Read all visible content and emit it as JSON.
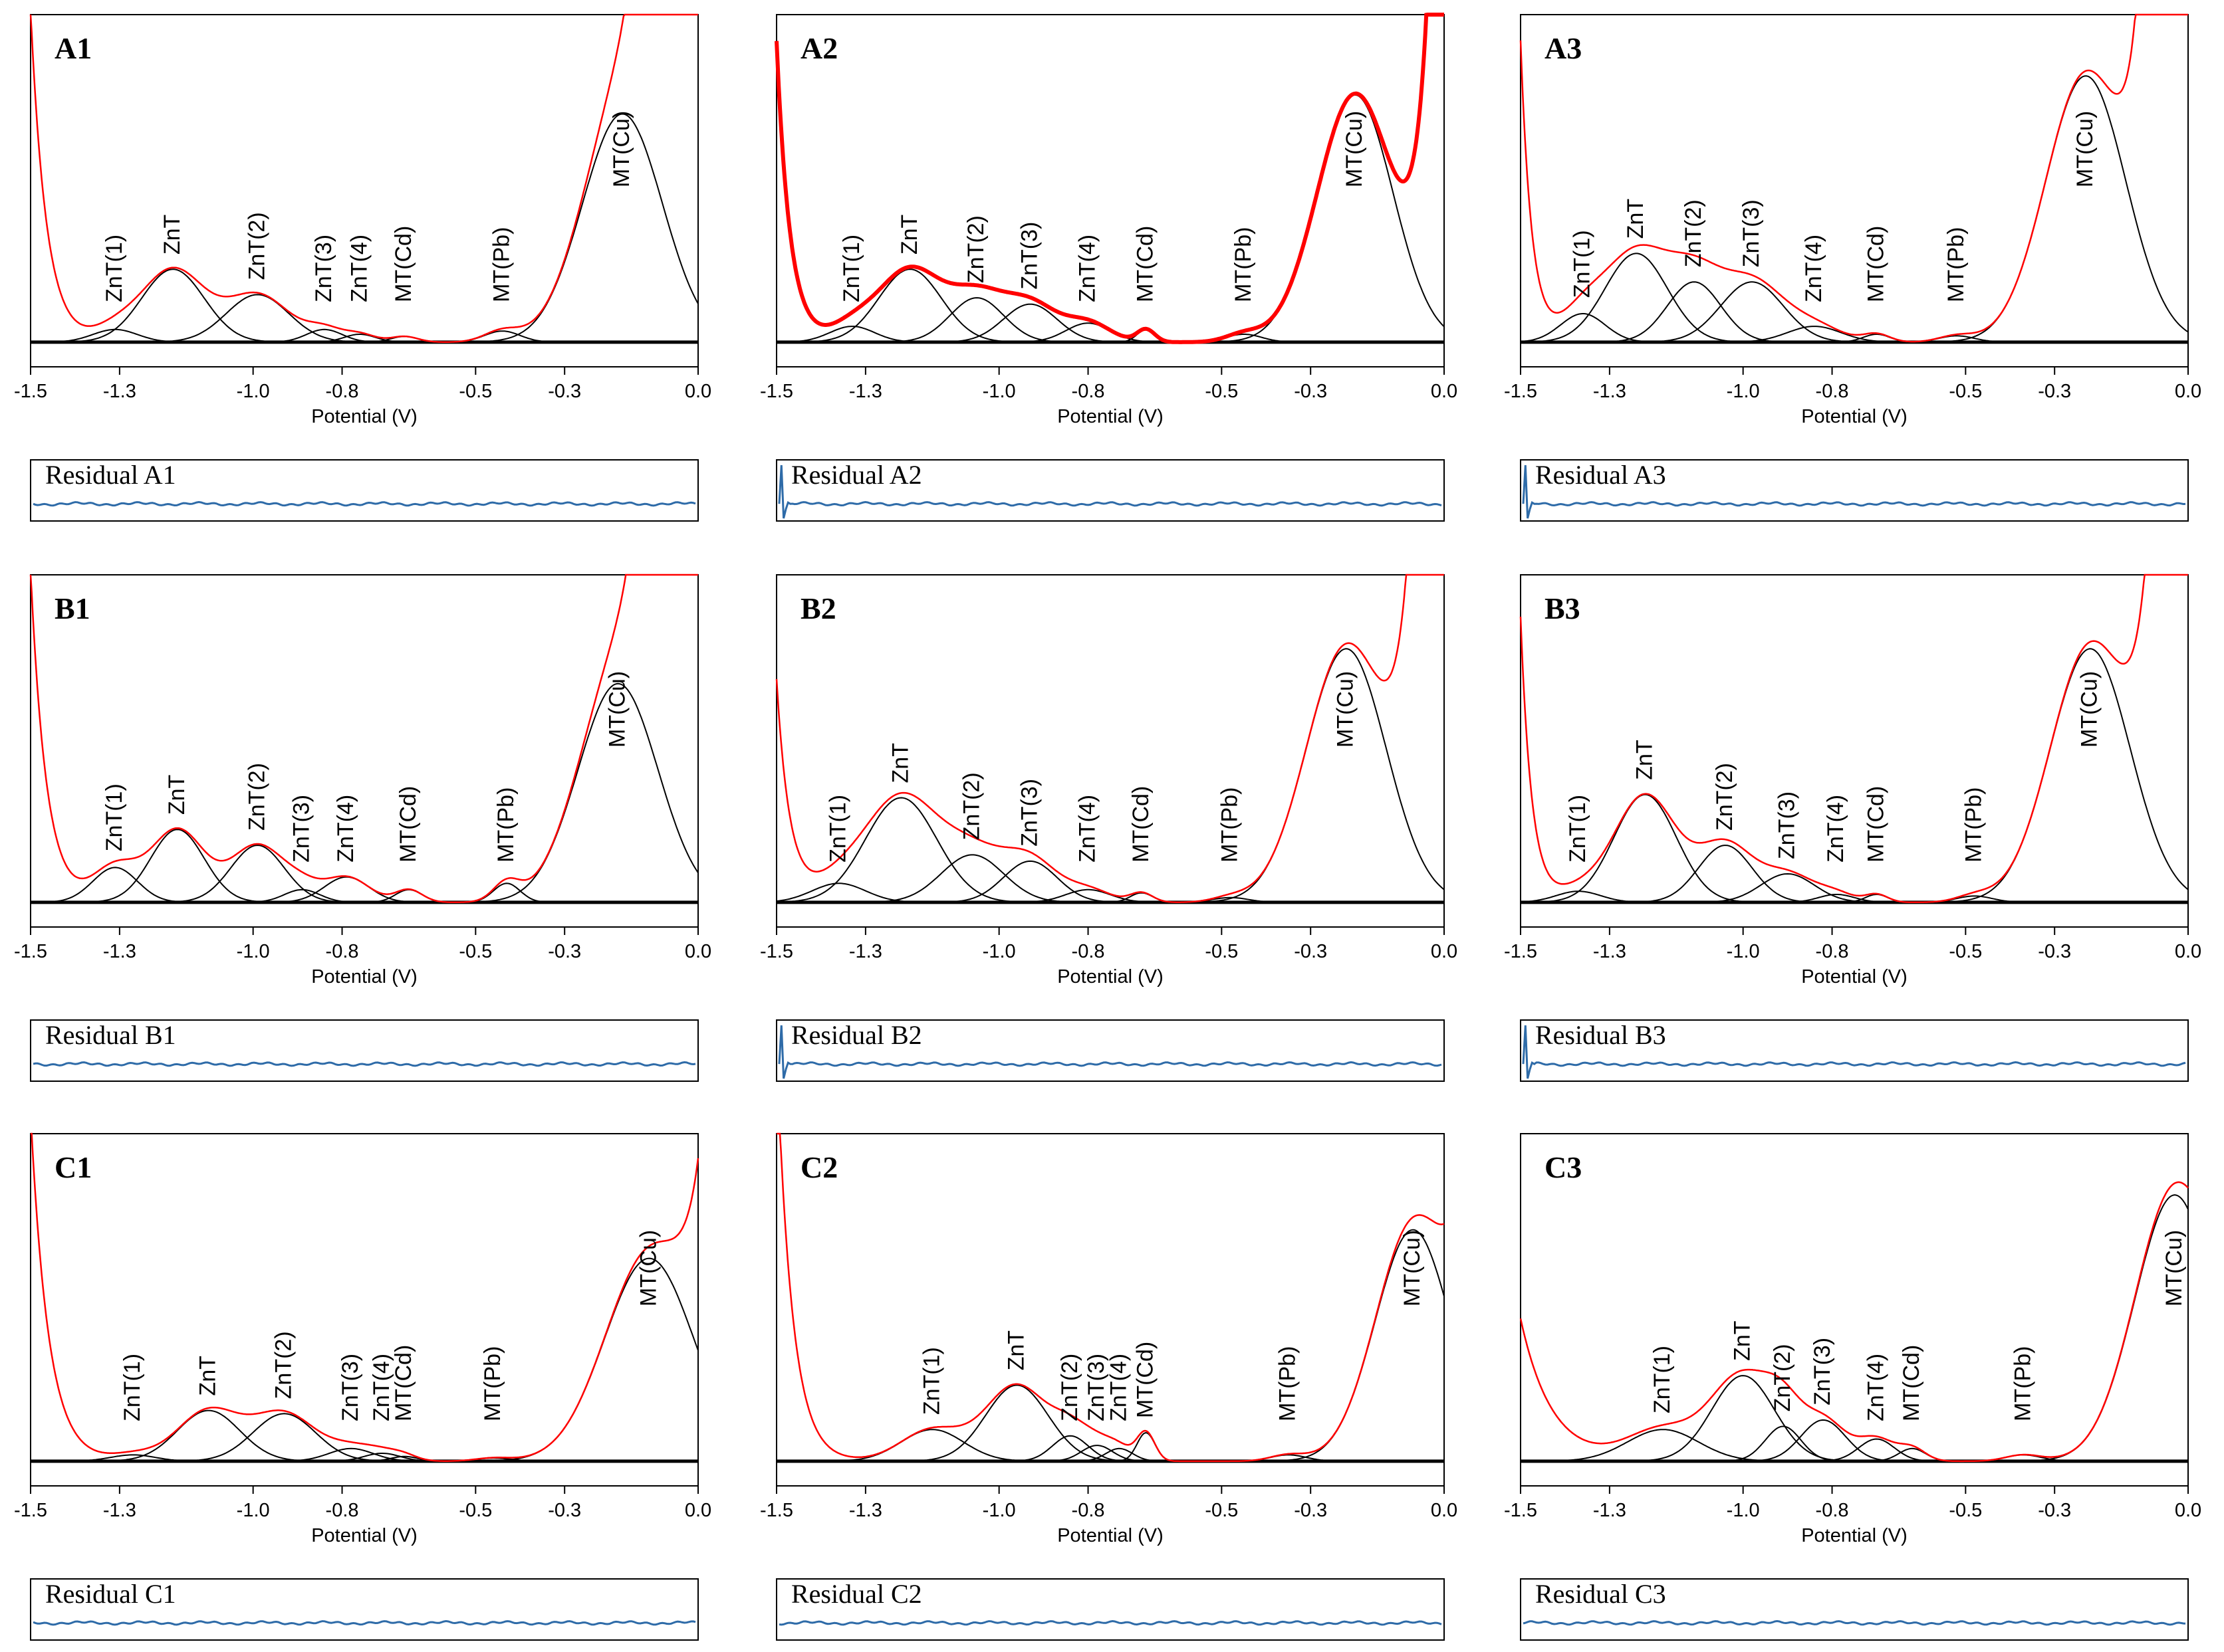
{
  "figure": {
    "xlabel": "Potential (V)",
    "xlim": [
      -1.5,
      0.0
    ],
    "x_ticks": [
      "-1.5",
      "-1.3",
      "-1.0",
      "-0.8",
      "-0.5",
      "-0.3",
      "0.0"
    ],
    "residual_prefix": "Residual",
    "colors": {
      "envelope": "#ff0000",
      "component": "#000000",
      "baseline": "#000000",
      "residual": "#2e6ba8"
    }
  },
  "chart_data": [
    {
      "id": "A1",
      "type": "line",
      "title": "A1",
      "residual_label": "Residual  A1",
      "xlabel": "Potential (V)",
      "xlim": [
        -1.5,
        0.0
      ],
      "bold_envelope": false,
      "peaks": [
        {
          "label": "ZnT(1)",
          "center": -1.31,
          "height": 0.04,
          "width": 0.05
        },
        {
          "label": "ZnT",
          "center": -1.18,
          "height": 0.23,
          "width": 0.07
        },
        {
          "label": "ZnT(2)",
          "center": -0.99,
          "height": 0.15,
          "width": 0.07
        },
        {
          "label": "ZnT(3)",
          "center": -0.84,
          "height": 0.04,
          "width": 0.04
        },
        {
          "label": "ZnT(4)",
          "center": -0.76,
          "height": 0.025,
          "width": 0.035
        },
        {
          "label": "MT(Cd)",
          "center": -0.66,
          "height": 0.018,
          "width": 0.03
        },
        {
          "label": "MT(Pb)",
          "center": -0.44,
          "height": 0.035,
          "width": 0.04
        },
        {
          "label": "MT(Cu)",
          "center": -0.17,
          "height": 0.72,
          "width": 0.09
        }
      ],
      "rise_left": {
        "height": 1.05,
        "decay": 0.035
      },
      "rise_right": {
        "start": -0.12,
        "height": 1.2,
        "decay": 0.035
      },
      "residual_spike": false
    },
    {
      "id": "A2",
      "type": "line",
      "title": "A2",
      "residual_label": "Residual  A2",
      "xlabel": "Potential (V)",
      "xlim": [
        -1.5,
        0.0
      ],
      "bold_envelope": true,
      "peaks": [
        {
          "label": "ZnT(1)",
          "center": -1.33,
          "height": 0.05,
          "width": 0.05
        },
        {
          "label": "ZnT",
          "center": -1.2,
          "height": 0.23,
          "width": 0.07
        },
        {
          "label": "ZnT(2)",
          "center": -1.05,
          "height": 0.14,
          "width": 0.06
        },
        {
          "label": "ZnT(3)",
          "center": -0.93,
          "height": 0.12,
          "width": 0.06
        },
        {
          "label": "ZnT(4)",
          "center": -0.8,
          "height": 0.06,
          "width": 0.05
        },
        {
          "label": "MT(Cd)",
          "center": -0.67,
          "height": 0.04,
          "width": 0.02
        },
        {
          "label": "MT(Pb)",
          "center": -0.45,
          "height": 0.025,
          "width": 0.04
        },
        {
          "label": "MT(Cu)",
          "center": -0.2,
          "height": 0.78,
          "width": 0.085
        }
      ],
      "rise_left": {
        "height": 0.95,
        "decay": 0.03
      },
      "rise_right": {
        "start": -0.04,
        "height": 0.9,
        "decay": 0.03
      },
      "residual_spike": true
    },
    {
      "id": "A3",
      "type": "line",
      "title": "A3",
      "residual_label": "Residual  A3",
      "xlabel": "Potential (V)",
      "xlim": [
        -1.5,
        0.0
      ],
      "bold_envelope": false,
      "peaks": [
        {
          "label": "ZnT(1)",
          "center": -1.36,
          "height": 0.09,
          "width": 0.05
        },
        {
          "label": "ZnT",
          "center": -1.24,
          "height": 0.28,
          "width": 0.07
        },
        {
          "label": "ZnT(2)",
          "center": -1.11,
          "height": 0.19,
          "width": 0.06
        },
        {
          "label": "ZnT(3)",
          "center": -0.98,
          "height": 0.19,
          "width": 0.07
        },
        {
          "label": "ZnT(4)",
          "center": -0.84,
          "height": 0.05,
          "width": 0.06
        },
        {
          "label": "MT(Cd)",
          "center": -0.7,
          "height": 0.025,
          "width": 0.03
        },
        {
          "label": "MT(Pb)",
          "center": -0.52,
          "height": 0.02,
          "width": 0.04
        },
        {
          "label": "MT(Cu)",
          "center": -0.23,
          "height": 0.84,
          "width": 0.09
        }
      ],
      "rise_left": {
        "height": 0.95,
        "decay": 0.025
      },
      "rise_right": {
        "start": -0.1,
        "height": 1.2,
        "decay": 0.03
      },
      "residual_spike": true
    },
    {
      "id": "B1",
      "type": "line",
      "title": "B1",
      "residual_label": "Residual  B1",
      "xlabel": "Potential (V)",
      "xlim": [
        -1.5,
        0.0
      ],
      "bold_envelope": false,
      "peaks": [
        {
          "label": "ZnT(1)",
          "center": -1.31,
          "height": 0.11,
          "width": 0.05
        },
        {
          "label": "ZnT",
          "center": -1.17,
          "height": 0.23,
          "width": 0.06
        },
        {
          "label": "ZnT(2)",
          "center": -0.99,
          "height": 0.18,
          "width": 0.06
        },
        {
          "label": "ZnT(3)",
          "center": -0.89,
          "height": 0.04,
          "width": 0.04
        },
        {
          "label": "ZnT(4)",
          "center": -0.79,
          "height": 0.08,
          "width": 0.05
        },
        {
          "label": "MT(Cd)",
          "center": -0.65,
          "height": 0.04,
          "width": 0.03
        },
        {
          "label": "MT(Pb)",
          "center": -0.43,
          "height": 0.06,
          "width": 0.03
        },
        {
          "label": "MT(Cu)",
          "center": -0.18,
          "height": 0.69,
          "width": 0.09
        }
      ],
      "rise_left": {
        "height": 1.05,
        "decay": 0.035
      },
      "rise_right": {
        "start": -0.12,
        "height": 1.2,
        "decay": 0.035
      },
      "residual_spike": false
    },
    {
      "id": "B2",
      "type": "line",
      "title": "B2",
      "residual_label": "Residual  B2",
      "xlabel": "Potential (V)",
      "xlim": [
        -1.5,
        0.0
      ],
      "bold_envelope": false,
      "peaks": [
        {
          "label": "ZnT(1)",
          "center": -1.36,
          "height": 0.06,
          "width": 0.06
        },
        {
          "label": "ZnT",
          "center": -1.22,
          "height": 0.33,
          "width": 0.08
        },
        {
          "label": "ZnT(2)",
          "center": -1.06,
          "height": 0.15,
          "width": 0.07
        },
        {
          "label": "ZnT(3)",
          "center": -0.93,
          "height": 0.13,
          "width": 0.06
        },
        {
          "label": "ZnT(4)",
          "center": -0.8,
          "height": 0.04,
          "width": 0.05
        },
        {
          "label": "MT(Cd)",
          "center": -0.68,
          "height": 0.03,
          "width": 0.025
        },
        {
          "label": "MT(Pb)",
          "center": -0.48,
          "height": 0.015,
          "width": 0.04
        },
        {
          "label": "MT(Cu)",
          "center": -0.22,
          "height": 0.8,
          "width": 0.09
        }
      ],
      "rise_left": {
        "height": 0.7,
        "decay": 0.03
      },
      "rise_right": {
        "start": -0.07,
        "height": 1.2,
        "decay": 0.035
      },
      "residual_spike": true
    },
    {
      "id": "B3",
      "type": "line",
      "title": "B3",
      "residual_label": "Residual  B3",
      "xlabel": "Potential (V)",
      "xlim": [
        -1.5,
        0.0
      ],
      "bold_envelope": false,
      "peaks": [
        {
          "label": "ZnT(1)",
          "center": -1.37,
          "height": 0.035,
          "width": 0.05
        },
        {
          "label": "ZnT",
          "center": -1.22,
          "height": 0.34,
          "width": 0.07
        },
        {
          "label": "ZnT(2)",
          "center": -1.04,
          "height": 0.18,
          "width": 0.06
        },
        {
          "label": "ZnT(3)",
          "center": -0.9,
          "height": 0.09,
          "width": 0.06
        },
        {
          "label": "ZnT(4)",
          "center": -0.79,
          "height": 0.025,
          "width": 0.04
        },
        {
          "label": "MT(Cd)",
          "center": -0.7,
          "height": 0.025,
          "width": 0.025
        },
        {
          "label": "MT(Pb)",
          "center": -0.48,
          "height": 0.02,
          "width": 0.04
        },
        {
          "label": "MT(Cu)",
          "center": -0.22,
          "height": 0.8,
          "width": 0.09
        }
      ],
      "rise_left": {
        "height": 0.9,
        "decay": 0.025
      },
      "rise_right": {
        "start": -0.08,
        "height": 1.2,
        "decay": 0.035
      },
      "residual_spike": true
    },
    {
      "id": "C1",
      "type": "line",
      "title": "C1",
      "residual_label": "Residual  C1",
      "xlabel": "Potential (V)",
      "xlim": [
        -1.5,
        0.0
      ],
      "bold_envelope": false,
      "peaks": [
        {
          "label": "ZnT(1)",
          "center": -1.27,
          "height": 0.02,
          "width": 0.05
        },
        {
          "label": "ZnT",
          "center": -1.1,
          "height": 0.16,
          "width": 0.07
        },
        {
          "label": "ZnT(2)",
          "center": -0.93,
          "height": 0.15,
          "width": 0.07
        },
        {
          "label": "ZnT(3)",
          "center": -0.78,
          "height": 0.04,
          "width": 0.05
        },
        {
          "label": "ZnT(4)",
          "center": -0.71,
          "height": 0.025,
          "width": 0.04
        },
        {
          "label": "MT(Cd)",
          "center": -0.66,
          "height": 0.015,
          "width": 0.03
        },
        {
          "label": "MT(Pb)",
          "center": -0.46,
          "height": 0.01,
          "width": 0.04
        },
        {
          "label": "MT(Cu)",
          "center": -0.11,
          "height": 0.64,
          "width": 0.1
        }
      ],
      "rise_left": {
        "height": 1.1,
        "decay": 0.04
      },
      "rise_right": {
        "start": 0.02,
        "height": 1.0,
        "decay": 0.04
      },
      "residual_spike": false
    },
    {
      "id": "C2",
      "type": "line",
      "title": "C2",
      "residual_label": "Residual  C2",
      "xlabel": "Potential (V)",
      "xlim": [
        -1.5,
        0.0
      ],
      "bold_envelope": false,
      "peaks": [
        {
          "label": "ZnT(1)",
          "center": -1.15,
          "height": 0.1,
          "width": 0.07
        },
        {
          "label": "ZnT",
          "center": -0.96,
          "height": 0.24,
          "width": 0.07
        },
        {
          "label": "ZnT(2)",
          "center": -0.84,
          "height": 0.08,
          "width": 0.04
        },
        {
          "label": "ZnT(3)",
          "center": -0.78,
          "height": 0.05,
          "width": 0.035
        },
        {
          "label": "ZnT(4)",
          "center": -0.73,
          "height": 0.04,
          "width": 0.03
        },
        {
          "label": "MT(Cd)",
          "center": -0.67,
          "height": 0.09,
          "width": 0.02
        },
        {
          "label": "MT(Pb)",
          "center": -0.35,
          "height": 0.02,
          "width": 0.04
        },
        {
          "label": "MT(Cu)",
          "center": -0.07,
          "height": 0.73,
          "width": 0.085
        }
      ],
      "rise_left": {
        "height": 1.3,
        "decay": 0.035
      },
      "rise_right": {
        "start": 0.05,
        "height": 0.8,
        "decay": 0.04
      },
      "residual_spike": false
    },
    {
      "id": "C3",
      "type": "line",
      "title": "C3",
      "residual_label": "Residual  C3",
      "xlabel": "Potential (V)",
      "xlim": [
        -1.5,
        0.0
      ],
      "bold_envelope": false,
      "peaks": [
        {
          "label": "ZnT(1)",
          "center": -1.18,
          "height": 0.1,
          "width": 0.08
        },
        {
          "label": "ZnT",
          "center": -1.0,
          "height": 0.27,
          "width": 0.07
        },
        {
          "label": "ZnT(2)",
          "center": -0.91,
          "height": 0.11,
          "width": 0.04
        },
        {
          "label": "ZnT(3)",
          "center": -0.82,
          "height": 0.13,
          "width": 0.05
        },
        {
          "label": "ZnT(4)",
          "center": -0.7,
          "height": 0.07,
          "width": 0.04
        },
        {
          "label": "MT(Cd)",
          "center": -0.62,
          "height": 0.04,
          "width": 0.03
        },
        {
          "label": "MT(Pb)",
          "center": -0.37,
          "height": 0.02,
          "width": 0.04
        },
        {
          "label": "MT(Cu)",
          "center": -0.03,
          "height": 0.84,
          "width": 0.09
        }
      ],
      "rise_left": {
        "height": 0.45,
        "decay": 0.07
      },
      "rise_right": {
        "start": 0.1,
        "height": 0.5,
        "decay": 0.05
      },
      "residual_spike": false
    }
  ]
}
